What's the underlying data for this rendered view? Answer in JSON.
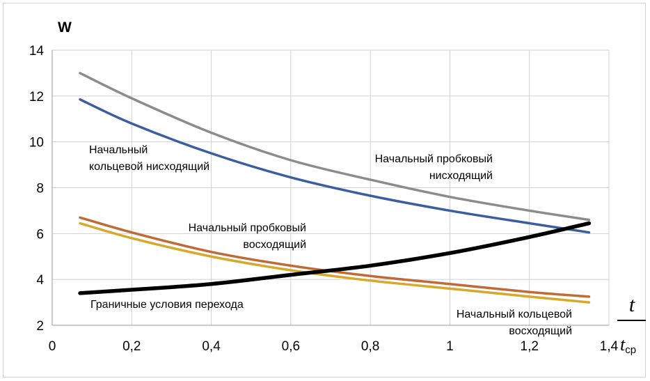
{
  "chart_data": {
    "type": "line",
    "ylabel": "W",
    "xlabel": {
      "numerator": "t",
      "denominator": "t",
      "denominator_subscript": "ср"
    },
    "xlim": [
      0,
      1.4
    ],
    "ylim": [
      2,
      14
    ],
    "xticks": [
      0,
      0.2,
      0.4,
      0.6,
      0.8,
      1,
      1.2,
      1.4
    ],
    "xtick_labels": [
      "0",
      "0,2",
      "0,4",
      "0,6",
      "0,8",
      "1",
      "1,2",
      "1,4"
    ],
    "yticks": [
      2,
      4,
      6,
      8,
      10,
      12,
      14
    ],
    "ytick_labels": [
      "2",
      "4",
      "6",
      "8",
      "10",
      "12",
      "14"
    ],
    "grid": true,
    "legend": "none",
    "series": [
      {
        "color": "#8c8c8c",
        "x": [
          0.07,
          0.2,
          0.4,
          0.6,
          0.8,
          1.0,
          1.2,
          1.35
        ],
        "y": [
          13.0,
          11.9,
          10.4,
          9.2,
          8.35,
          7.6,
          7.0,
          6.6
        ]
      },
      {
        "color": "#3a5ea0",
        "x": [
          0.07,
          0.2,
          0.4,
          0.6,
          0.8,
          1.0,
          1.2,
          1.35
        ],
        "y": [
          11.85,
          10.8,
          9.5,
          8.45,
          7.65,
          7.0,
          6.45,
          6.05
        ]
      },
      {
        "color": "#c06a35",
        "x": [
          0.07,
          0.2,
          0.4,
          0.6,
          0.8,
          1.0,
          1.2,
          1.35
        ],
        "y": [
          6.7,
          6.05,
          5.2,
          4.6,
          4.15,
          3.8,
          3.45,
          3.25
        ]
      },
      {
        "color": "#d8a82a",
        "x": [
          0.07,
          0.2,
          0.4,
          0.6,
          0.8,
          1.0,
          1.2,
          1.35
        ],
        "y": [
          6.45,
          5.8,
          5.0,
          4.4,
          3.95,
          3.6,
          3.25,
          3.0
        ]
      },
      {
        "color": "#000000",
        "x": [
          0.07,
          0.2,
          0.4,
          0.6,
          0.8,
          1.0,
          1.2,
          1.35
        ],
        "y": [
          3.4,
          3.55,
          3.8,
          4.2,
          4.6,
          5.15,
          5.85,
          6.45
        ]
      }
    ],
    "annotations": [
      {
        "lines": [
          "Начальный",
          "кольцевой нисходящий"
        ]
      },
      {
        "lines": [
          "Начальный пробковый",
          "нисходящий"
        ]
      },
      {
        "lines": [
          "Начальный пробковый",
          "восходящий"
        ]
      },
      {
        "lines": [
          "Граничные условия перехода"
        ]
      },
      {
        "lines": [
          "Начальный кольцевой",
          "восходящий"
        ]
      }
    ]
  }
}
